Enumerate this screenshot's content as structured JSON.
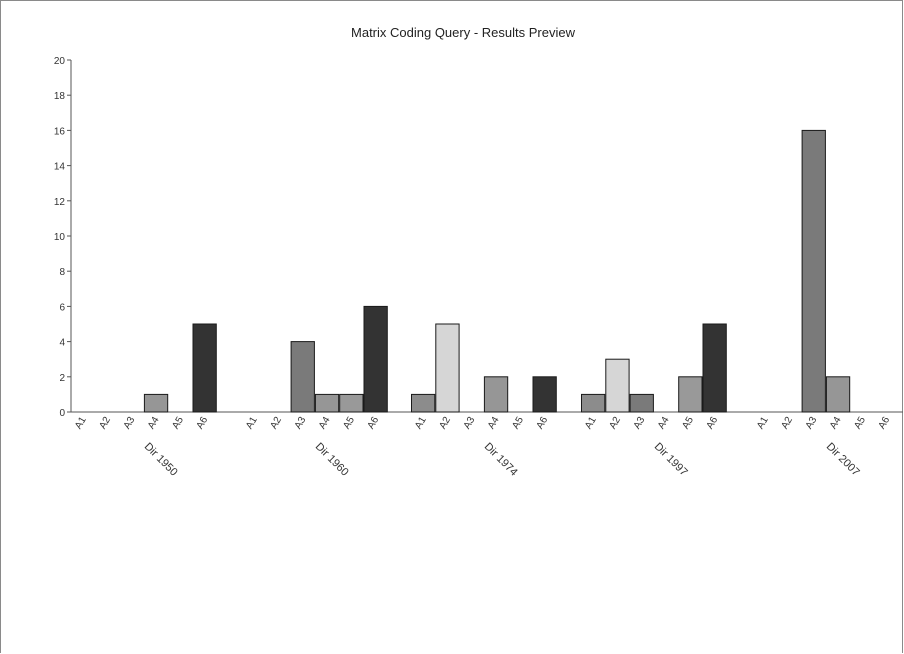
{
  "chart_data": {
    "type": "bar",
    "title": "Matrix Coding Query - Results Preview",
    "xlabel": "",
    "ylabel": "",
    "ylim": [
      0,
      20
    ],
    "y_ticks": [
      "0",
      "2",
      "4",
      "6",
      "8",
      "10",
      "12",
      "14",
      "16",
      "18",
      "20"
    ],
    "grid": false,
    "legend": "none",
    "categories": [
      "A1",
      "A2",
      "A3",
      "A4",
      "A5",
      "A6"
    ],
    "groups": [
      {
        "name": "Dir 1950",
        "values": [
          0,
          0,
          0,
          1,
          0,
          5
        ]
      },
      {
        "name": "Dir 1960",
        "values": [
          0,
          0,
          4,
          1,
          1,
          6
        ]
      },
      {
        "name": "Dir 1974",
        "values": [
          1,
          5,
          0,
          2,
          0,
          2
        ]
      },
      {
        "name": "Dir 1997",
        "values": [
          1,
          3,
          1,
          0,
          2,
          5
        ]
      },
      {
        "name": "Dir 2007",
        "values": [
          0,
          0,
          16,
          2,
          0,
          0
        ]
      }
    ],
    "colors": [
      "#8c8c8c",
      "#d6d6d6",
      "#7a7a7a",
      "#969696",
      "#999999",
      "#333333"
    ]
  }
}
